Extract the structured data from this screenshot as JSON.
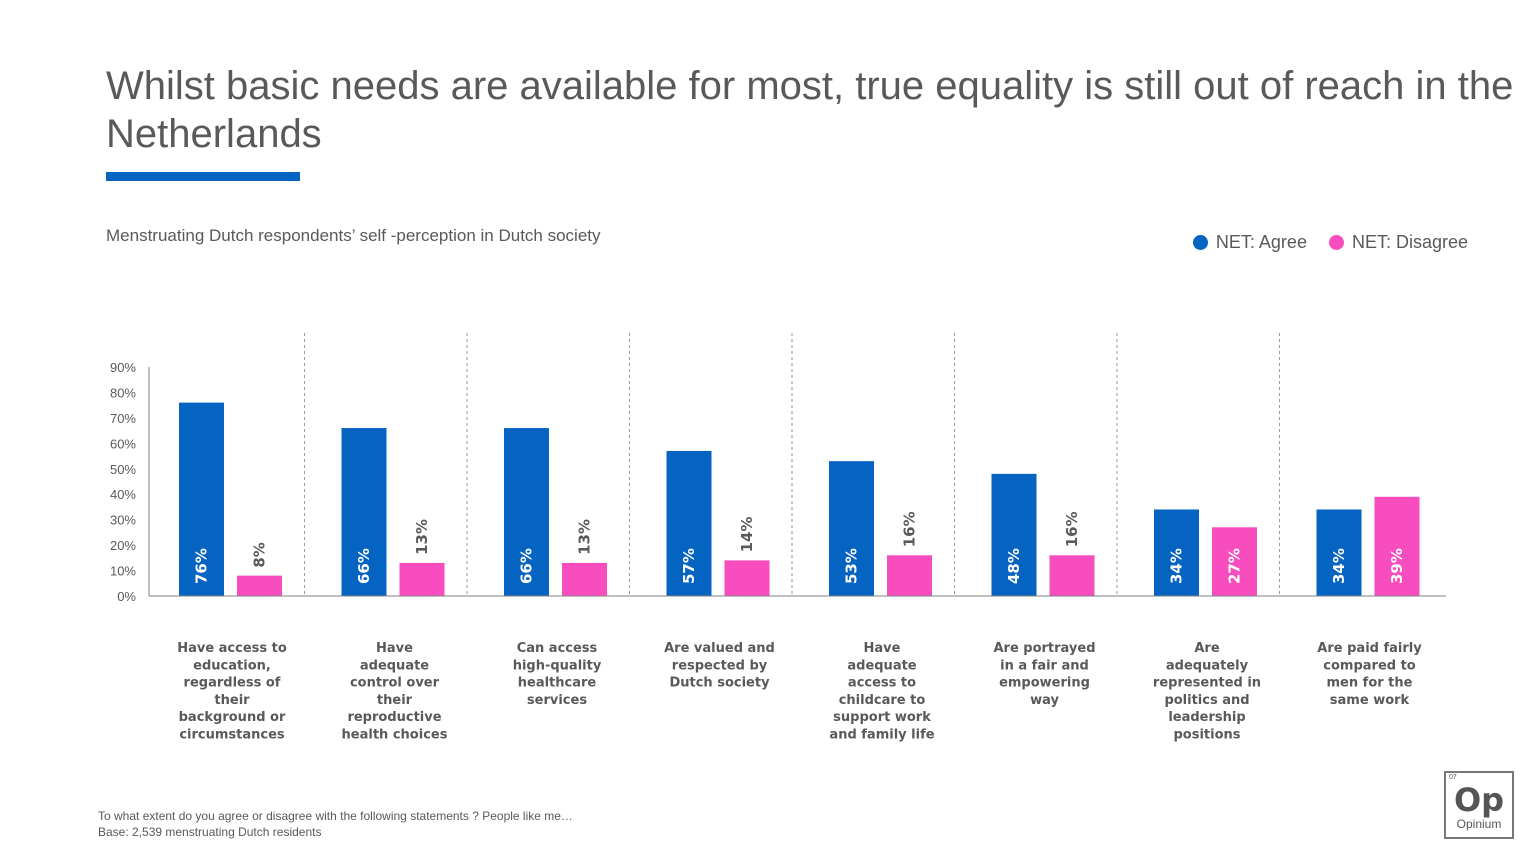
{
  "title": "Whilst basic needs are available for most, true equality is still out of reach in the Netherlands",
  "subtitle": "Menstruating Dutch respondents’ self -perception in Dutch society",
  "footer": {
    "question": "To what extent do you agree or disagree with the following statements   ? People like me…",
    "base": "Base: 2,539 menstruating Dutch residents"
  },
  "logo": {
    "number": "07",
    "mark": "Op",
    "name": "Opinium"
  },
  "colors": {
    "agree": "#0563C1",
    "disagree": "#F74DBE",
    "accent": "#0563C1"
  },
  "chart_data": {
    "type": "bar",
    "ylim": [
      0,
      90
    ],
    "yticks": [
      "0%",
      "10%",
      "20%",
      "30%",
      "40%",
      "50%",
      "60%",
      "70%",
      "80%",
      "90%"
    ],
    "grid": false,
    "legend_position": "top-right",
    "categories": [
      [
        "Have access to",
        "education,",
        "regardless of",
        "their",
        "background or",
        "circumstances"
      ],
      [
        "Have",
        "adequate",
        "control over",
        "their",
        "reproductive",
        "health choices"
      ],
      [
        "Can access",
        "high-quality",
        "healthcare",
        "services"
      ],
      [
        "Are valued and",
        "respected by",
        "Dutch society"
      ],
      [
        "Have",
        "adequate",
        "access to",
        "childcare to",
        "support work",
        "and family life"
      ],
      [
        "Are portrayed",
        "in a fair and",
        "empowering",
        "way"
      ],
      [
        "Are",
        "adequately",
        "represented in",
        "politics and",
        "leadership",
        "positions"
      ],
      [
        "Are paid fairly",
        "compared to",
        "men for the",
        "same work"
      ]
    ],
    "series": [
      {
        "name": "NET: Agree",
        "values": [
          76,
          66,
          66,
          57,
          53,
          48,
          34,
          34
        ],
        "labels": [
          "76%",
          "66%",
          "66%",
          "57%",
          "53%",
          "48%",
          "34%",
          "34%"
        ]
      },
      {
        "name": "NET: Disagree",
        "values": [
          8,
          13,
          13,
          14,
          16,
          16,
          27,
          39
        ],
        "labels": [
          "8%",
          "13%",
          "13%",
          "14%",
          "16%",
          "16%",
          "27%",
          "39%"
        ]
      }
    ]
  }
}
